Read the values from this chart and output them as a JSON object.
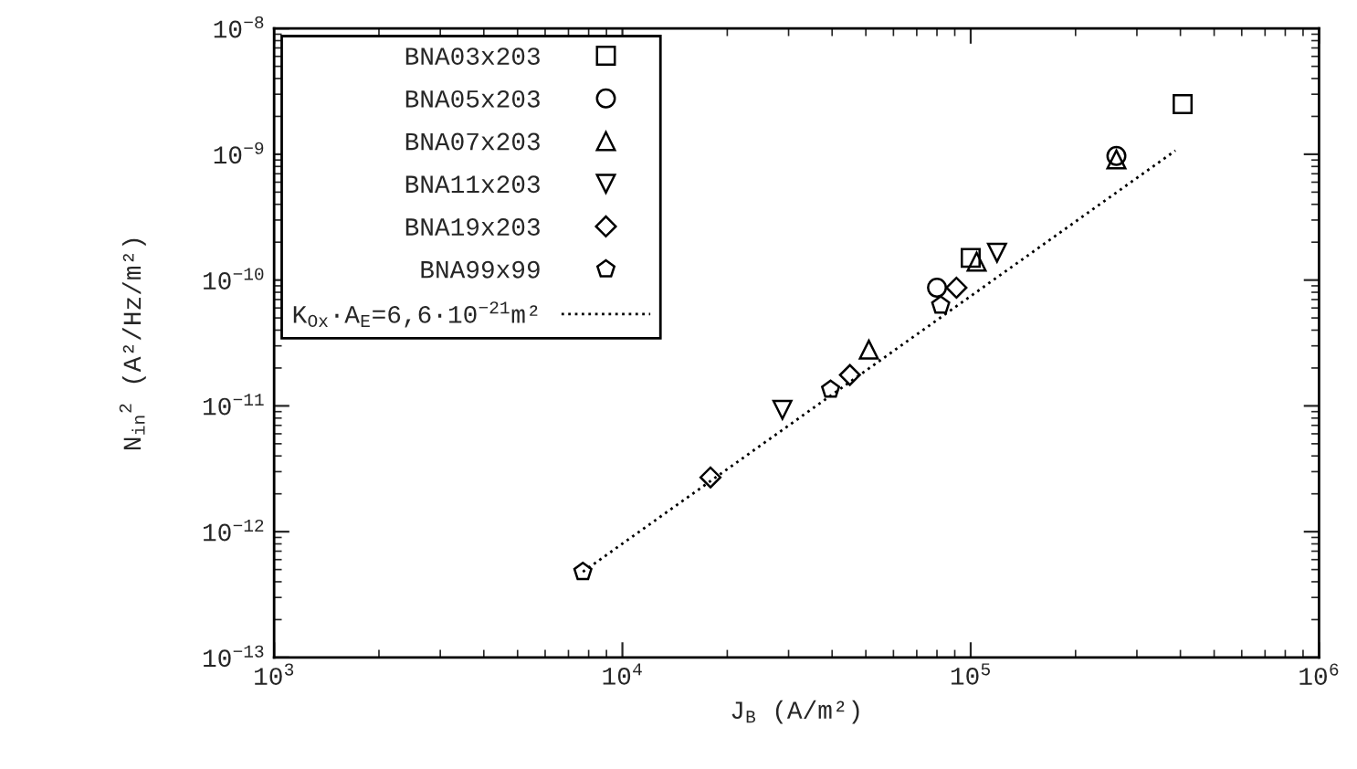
{
  "chart_data": {
    "type": "scatter",
    "xlabel": "J$_{B}$ (A/m²)",
    "ylabel": "N$_{in}$$^{2}$ (A²/Hz/m²)",
    "log": "xy",
    "grid": false,
    "legend": "top left",
    "xlim": [
      1000,
      1000000
    ],
    "ylim": [
      1e-13,
      1e-08
    ],
    "xticks": [
      {
        "value": 1000,
        "label": "10$^{3}$"
      },
      {
        "value": 10000,
        "label": "10$^{4}$"
      },
      {
        "value": 100000,
        "label": "10$^{5}$"
      },
      {
        "value": 1000000,
        "label": "10$^{6}$"
      }
    ],
    "yticks": [
      {
        "value": 1e-13,
        "label": "10$^{−13}$"
      },
      {
        "value": 1e-12,
        "label": "10$^{−12}$"
      },
      {
        "value": 1e-11,
        "label": "10$^{−11}$"
      },
      {
        "value": 1e-10,
        "label": "10$^{−10}$"
      },
      {
        "value": 1e-09,
        "label": "10$^{−9}$"
      },
      {
        "value": 1e-08,
        "label": "10$^{−8}$"
      }
    ],
    "series": [
      {
        "name": "BNA03x203",
        "color": "#000000",
        "marker": "square",
        "x": [
          100000,
          406000
        ],
        "values": [
          1.5e-10,
          2.5e-09
        ]
      },
      {
        "name": "BNA05x203",
        "color": "#000000",
        "marker": "circle",
        "x": [
          80000,
          262000
        ],
        "values": [
          8.7e-11,
          9.7e-10
        ]
      },
      {
        "name": "BNA07x203",
        "color": "#000000",
        "marker": "triangle",
        "x": [
          51000,
          104000,
          262000
        ],
        "values": [
          2.8e-11,
          1.4e-10,
          9.1e-10
        ]
      },
      {
        "name": "BNA11x203",
        "color": "#000000",
        "marker": "triangle_down",
        "x": [
          28800,
          119000
        ],
        "values": [
          9.3e-12,
          1.65e-10
        ]
      },
      {
        "name": "BNA19x203",
        "color": "#000000",
        "marker": "diamond",
        "x": [
          17900,
          45000,
          91000
        ],
        "values": [
          2.7e-12,
          1.76e-11,
          8.7e-11
        ]
      },
      {
        "name": "BNA99x99",
        "color": "#000000",
        "x": [
          7700,
          39600,
          82000
        ],
        "values": [
          4.8e-13,
          1.35e-11,
          6.3e-11
        ]
      },
      {
        "name": "K$_{Ox}$·A$_{E}$=6,6·10$^{−21}$m²",
        "type": "line",
        "color": "#000000",
        "marker": "none",
        "line_style": "dotted",
        "x": [
          7700,
          387000
        ],
        "values": [
          4.8e-13,
          1.07e-09
        ]
      }
    ]
  }
}
